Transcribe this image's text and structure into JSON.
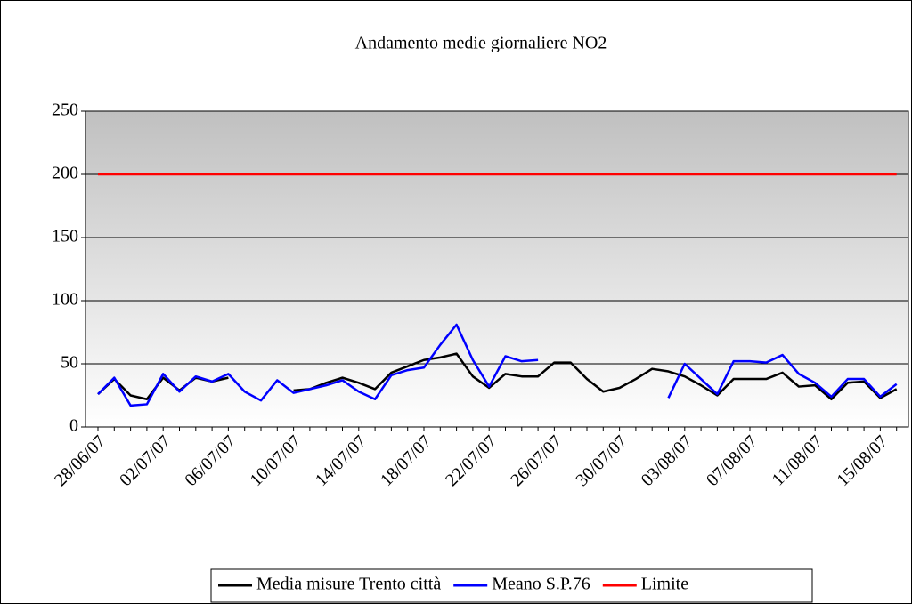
{
  "chart_data": {
    "type": "line",
    "title": "Andamento medie giornaliere NO2",
    "categories": [
      "28/06/07",
      null,
      null,
      null,
      "02/07/07",
      null,
      null,
      null,
      "06/07/07",
      null,
      null,
      null,
      "10/07/07",
      null,
      null,
      null,
      "14/07/07",
      null,
      null,
      null,
      "18/07/07",
      null,
      null,
      null,
      "22/07/07",
      null,
      null,
      null,
      "26/07/07",
      null,
      null,
      null,
      "30/07/07",
      null,
      null,
      null,
      "03/08/07",
      null,
      null,
      null,
      "07/08/07",
      null,
      null,
      null,
      "11/08/07",
      null,
      null,
      null,
      "15/08/07",
      null
    ],
    "series": [
      {
        "name": "Media misure Trento città",
        "color": "#000000",
        "values": [
          26,
          38,
          25,
          22,
          39,
          29,
          39,
          36,
          39,
          null,
          null,
          null,
          29,
          30,
          35,
          39,
          35,
          30,
          43,
          48,
          53,
          55,
          58,
          40,
          31,
          42,
          40,
          40,
          51,
          51,
          38,
          28,
          31,
          38,
          46,
          44,
          40,
          33,
          25,
          38,
          38,
          38,
          43,
          32,
          33,
          22,
          35,
          36,
          23,
          30
        ]
      },
      {
        "name": "Meano S.P.76",
        "color": "#0000ff",
        "values": [
          26,
          39,
          17,
          18,
          42,
          28,
          40,
          36,
          42,
          28,
          21,
          37,
          27,
          30,
          33,
          37,
          28,
          22,
          41,
          45,
          47,
          65,
          81,
          53,
          32,
          56,
          52,
          53,
          null,
          null,
          null,
          null,
          null,
          null,
          null,
          23,
          50,
          38,
          26,
          52,
          52,
          51,
          57,
          42,
          35,
          24,
          38,
          38,
          24,
          34
        ]
      },
      {
        "name": "Limite",
        "color": "#ff0000",
        "values": [
          200,
          200,
          200,
          200,
          200,
          200,
          200,
          200,
          200,
          200,
          200,
          200,
          200,
          200,
          200,
          200,
          200,
          200,
          200,
          200,
          200,
          200,
          200,
          200,
          200,
          200,
          200,
          200,
          200,
          200,
          200,
          200,
          200,
          200,
          200,
          200,
          200,
          200,
          200,
          200,
          200,
          200,
          200,
          200,
          200,
          200,
          200,
          200,
          200,
          200
        ]
      }
    ],
    "ylim": [
      0,
      250
    ],
    "yticks": [
      0,
      50,
      100,
      150,
      200,
      250
    ],
    "grid": true,
    "legend": "bottom"
  }
}
